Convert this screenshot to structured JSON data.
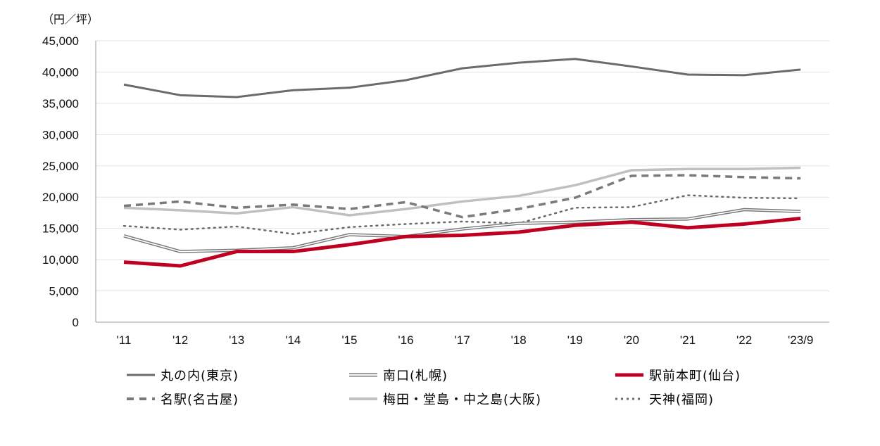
{
  "chart_data": {
    "type": "line",
    "unit_label": "（円／坪）",
    "categories": [
      "'11",
      "'12",
      "'13",
      "'14",
      "'15",
      "'16",
      "'17",
      "'18",
      "'19",
      "'20",
      "'21",
      "'22",
      "'23/9"
    ],
    "ylim": [
      0,
      45000
    ],
    "yticks": [
      "0",
      "5,000",
      "10,000",
      "15,000",
      "20,000",
      "25,000",
      "30,000",
      "35,000",
      "40,000",
      "45,000"
    ],
    "ytick_values": [
      0,
      5000,
      10000,
      15000,
      20000,
      25000,
      30000,
      35000,
      40000,
      45000
    ],
    "grid": true,
    "legend_position": "bottom",
    "series": [
      {
        "name": "丸の内(東京)",
        "style": "solid",
        "color": "#6b6b6b",
        "values": [
          38000,
          36300,
          36000,
          37100,
          37500,
          38700,
          40600,
          41500,
          42100,
          40900,
          39600,
          39500,
          40400
        ]
      },
      {
        "name": "南口(札幌)",
        "style": "double",
        "color": "#777777",
        "values": [
          13800,
          11300,
          11500,
          11900,
          14000,
          13700,
          14900,
          15800,
          16000,
          16400,
          16500,
          18000,
          17700
        ]
      },
      {
        "name": "駅前本町(仙台)",
        "style": "thick",
        "color": "#c00020",
        "values": [
          9600,
          9000,
          11300,
          11300,
          12400,
          13700,
          13900,
          14400,
          15500,
          16000,
          15100,
          15700,
          16600
        ]
      },
      {
        "name": "名駅(名古屋)",
        "style": "dashed",
        "color": "#7a7a7a",
        "values": [
          18600,
          19300,
          18300,
          18800,
          18100,
          19200,
          16800,
          18100,
          19900,
          23400,
          23500,
          23200,
          23000
        ]
      },
      {
        "name": "梅田・堂島・中之島(大阪)",
        "style": "light",
        "color": "#c0c0c0",
        "values": [
          18300,
          17900,
          17400,
          18400,
          17100,
          18100,
          19300,
          20200,
          21900,
          24300,
          24500,
          24500,
          24700
        ]
      },
      {
        "name": "天神(福岡)",
        "style": "dotted",
        "color": "#6b6b6b",
        "values": [
          15400,
          14800,
          15300,
          14100,
          15200,
          15700,
          16100,
          15800,
          18300,
          18400,
          20300,
          19900,
          19800
        ]
      }
    ]
  }
}
